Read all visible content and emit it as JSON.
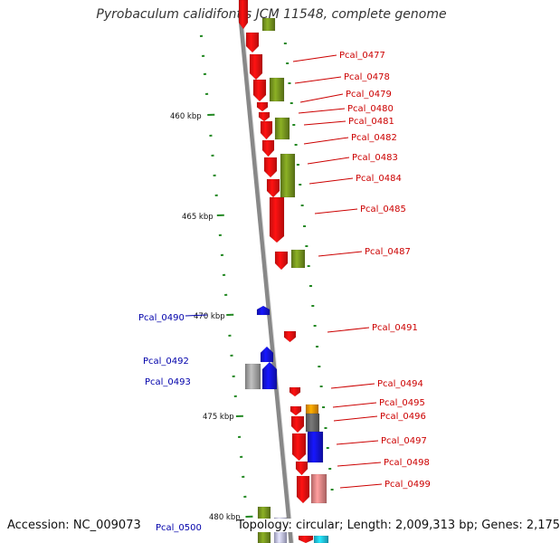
{
  "title": "Pyrobaculum calidifontis JCM 11548, complete genome",
  "accession": "Accession: NC_009073",
  "summary": "Topology: circular; Length: 2,009,313 bp; Genes: 2,175",
  "colors": {
    "forward_label": "#cc0000",
    "reverse_label": "#0000aa",
    "red": "#ff1010",
    "olive": "#7a9a20",
    "blue": "#1414e0",
    "gray": "#a8a8a8",
    "dark_gray": "#6a6a6a",
    "orange": "#ff9a00",
    "pink": "#f08a8a",
    "tick": "#228822",
    "backbone": "#888888"
  },
  "scale_labels": [
    "460 kbp",
    "465 kbp",
    "470 kbp",
    "475 kbp",
    "480 kbp"
  ],
  "forward_genes": [
    "Pcal_0477",
    "Pcal_0478",
    "Pcal_0479",
    "Pcal_0480",
    "Pcal_0481",
    "Pcal_0482",
    "Pcal_0483",
    "Pcal_0484",
    "Pcal_0485",
    "Pcal_0487",
    "Pcal_0491",
    "Pcal_0494",
    "Pcal_0495",
    "Pcal_0496",
    "Pcal_0497",
    "Pcal_0498",
    "Pcal_0499"
  ],
  "reverse_genes": [
    "Pcal_0490",
    "Pcal_0492",
    "Pcal_0493",
    "Pcal_0500"
  ]
}
